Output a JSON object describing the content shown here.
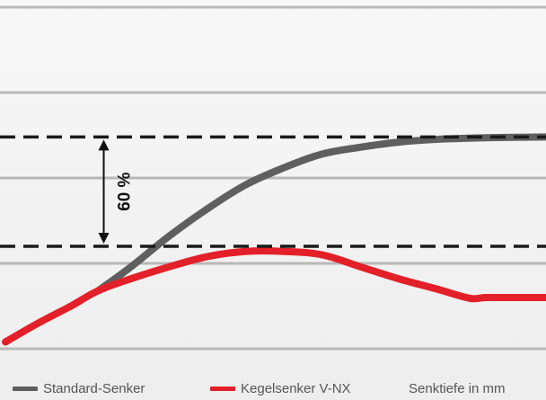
{
  "chart_data": {
    "type": "line",
    "title": "",
    "xlabel": "Senktiefe in mm",
    "ylabel": "",
    "x_range": [
      0,
      100
    ],
    "y_range": [
      0,
      100
    ],
    "grid": "horizontal",
    "gridlines_y": [
      100,
      75,
      50,
      25,
      0
    ],
    "reference_lines_y": [
      62,
      30
    ],
    "annotation": {
      "label": "60 %",
      "between_reference_lines": [
        62,
        30
      ],
      "at_x": 19
    },
    "legend_position": "bottom",
    "series": [
      {
        "name": "Standard-Senker",
        "color": "#5f5f5f",
        "points": [
          [
            18,
            17
          ],
          [
            24,
            24
          ],
          [
            31,
            33
          ],
          [
            38,
            41
          ],
          [
            45,
            48
          ],
          [
            52,
            53
          ],
          [
            59,
            57
          ],
          [
            66,
            59
          ],
          [
            73,
            60.5
          ],
          [
            80,
            61.3
          ],
          [
            90,
            61.8
          ],
          [
            100,
            62
          ]
        ]
      },
      {
        "name": "Kegelsenker V-NX",
        "color": "#e3202a",
        "points": [
          [
            1,
            2
          ],
          [
            7,
            7.5
          ],
          [
            13,
            12.5
          ],
          [
            18,
            17
          ],
          [
            24,
            20.5
          ],
          [
            31,
            24
          ],
          [
            38,
            27
          ],
          [
            45,
            28.5
          ],
          [
            52,
            28.5
          ],
          [
            59,
            27.5
          ],
          [
            66,
            24
          ],
          [
            73,
            20.5
          ],
          [
            80,
            17.5
          ],
          [
            86,
            14.8
          ],
          [
            89,
            15
          ],
          [
            95,
            15
          ],
          [
            100,
            15
          ]
        ]
      }
    ]
  },
  "legend": {
    "standard_label": "Standard-Senker",
    "vnx_label": "Kegelsenker V-NX",
    "axis_label": "Senktiefe in mm"
  },
  "colors": {
    "standard": "#5f5f5f",
    "vnx": "#e3202a",
    "grid": "#b8b8b8",
    "reference": "#1a1a1a"
  }
}
